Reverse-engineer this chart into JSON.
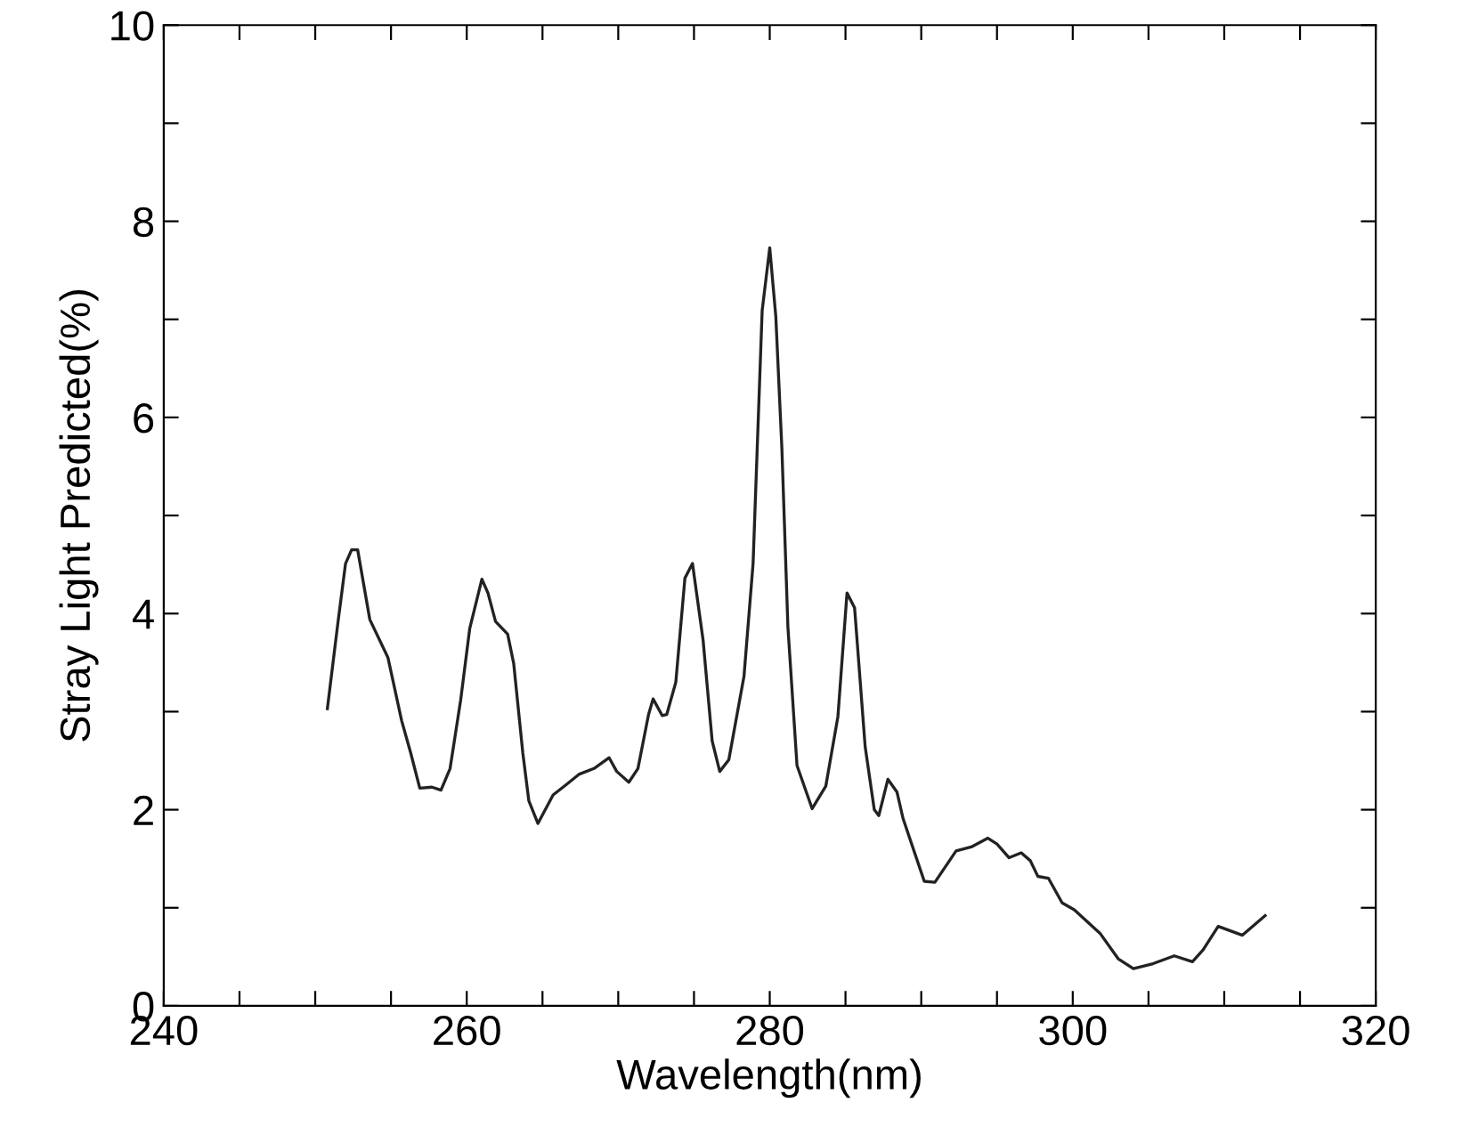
{
  "chart_data": {
    "type": "line",
    "xlabel": "Wavelength(nm)",
    "ylabel": "Stray Light Predicted(%)",
    "xlim": [
      240,
      320
    ],
    "ylim": [
      0,
      10
    ],
    "xticks": [
      240,
      {
        "value": 245,
        "label": null
      },
      260,
      {
        "value": 250,
        "label": null
      },
      {
        "value": 255,
        "label": null
      },
      {
        "value": 265,
        "label": null
      },
      {
        "value": 270,
        "label": null
      },
      {
        "value": 275,
        "label": null
      },
      280,
      {
        "value": 285,
        "label": null
      },
      {
        "value": 290,
        "label": null
      },
      {
        "value": 295,
        "label": null
      },
      300,
      {
        "value": 305,
        "label": null
      },
      {
        "value": 310,
        "label": null
      },
      {
        "value": 315,
        "label": null
      },
      320
    ],
    "yticks": [
      0,
      {
        "value": 1,
        "label": null
      },
      2,
      {
        "value": 3,
        "label": null
      },
      4,
      {
        "value": 5,
        "label": null
      },
      6,
      {
        "value": 7,
        "label": null
      },
      8,
      {
        "value": 9,
        "label": null
      },
      10
    ],
    "grid": false,
    "marker": "none",
    "line_style": "solid",
    "series": [
      {
        "color": "#222222",
        "x": [
          250.8,
          251.5,
          252.0,
          252.4,
          252.8,
          253.6,
          254.8,
          255.7,
          256.3,
          256.9,
          257.7,
          258.3,
          258.9,
          259.6,
          260.2,
          261.0,
          261.4,
          261.9,
          262.7,
          263.1,
          263.7,
          264.1,
          264.7,
          265.7,
          266.6,
          267.4,
          268.4,
          269.4,
          269.9,
          270.7,
          271.3,
          272.0,
          272.3,
          272.9,
          273.2,
          273.8,
          274.4,
          274.9,
          275.6,
          276.2,
          276.7,
          277.3,
          278.3,
          278.9,
          279.5,
          280.0,
          280.4,
          280.8,
          281.2,
          281.8,
          282.8,
          283.7,
          284.5,
          285.1,
          285.6,
          286.3,
          286.9,
          287.2,
          287.8,
          288.4,
          288.8,
          290.2,
          290.9,
          292.3,
          293.3,
          294.4,
          295.0,
          295.8,
          296.6,
          297.2,
          297.7,
          298.4,
          299.3,
          300.1,
          301.8,
          303.0,
          304.0,
          305.3,
          306.7,
          307.9,
          308.6,
          309.6,
          311.2,
          312.7
        ],
        "values": [
          3.03,
          3.91,
          4.51,
          4.65,
          4.65,
          3.94,
          3.55,
          2.91,
          2.58,
          2.22,
          2.23,
          2.2,
          2.42,
          3.12,
          3.85,
          4.35,
          4.21,
          3.92,
          3.79,
          3.49,
          2.58,
          2.09,
          1.86,
          2.15,
          2.26,
          2.36,
          2.42,
          2.53,
          2.39,
          2.28,
          2.42,
          2.97,
          3.13,
          2.96,
          2.97,
          3.3,
          4.36,
          4.51,
          3.73,
          2.7,
          2.39,
          2.51,
          3.36,
          4.51,
          7.09,
          7.73,
          7.03,
          5.69,
          3.86,
          2.45,
          2.01,
          2.24,
          2.95,
          4.21,
          4.06,
          2.64,
          2.0,
          1.94,
          2.31,
          2.18,
          1.91,
          1.27,
          1.26,
          1.58,
          1.62,
          1.71,
          1.65,
          1.51,
          1.56,
          1.48,
          1.32,
          1.3,
          1.05,
          0.98,
          0.74,
          0.48,
          0.38,
          0.43,
          0.51,
          0.45,
          0.57,
          0.81,
          0.72,
          0.92
        ]
      }
    ]
  }
}
